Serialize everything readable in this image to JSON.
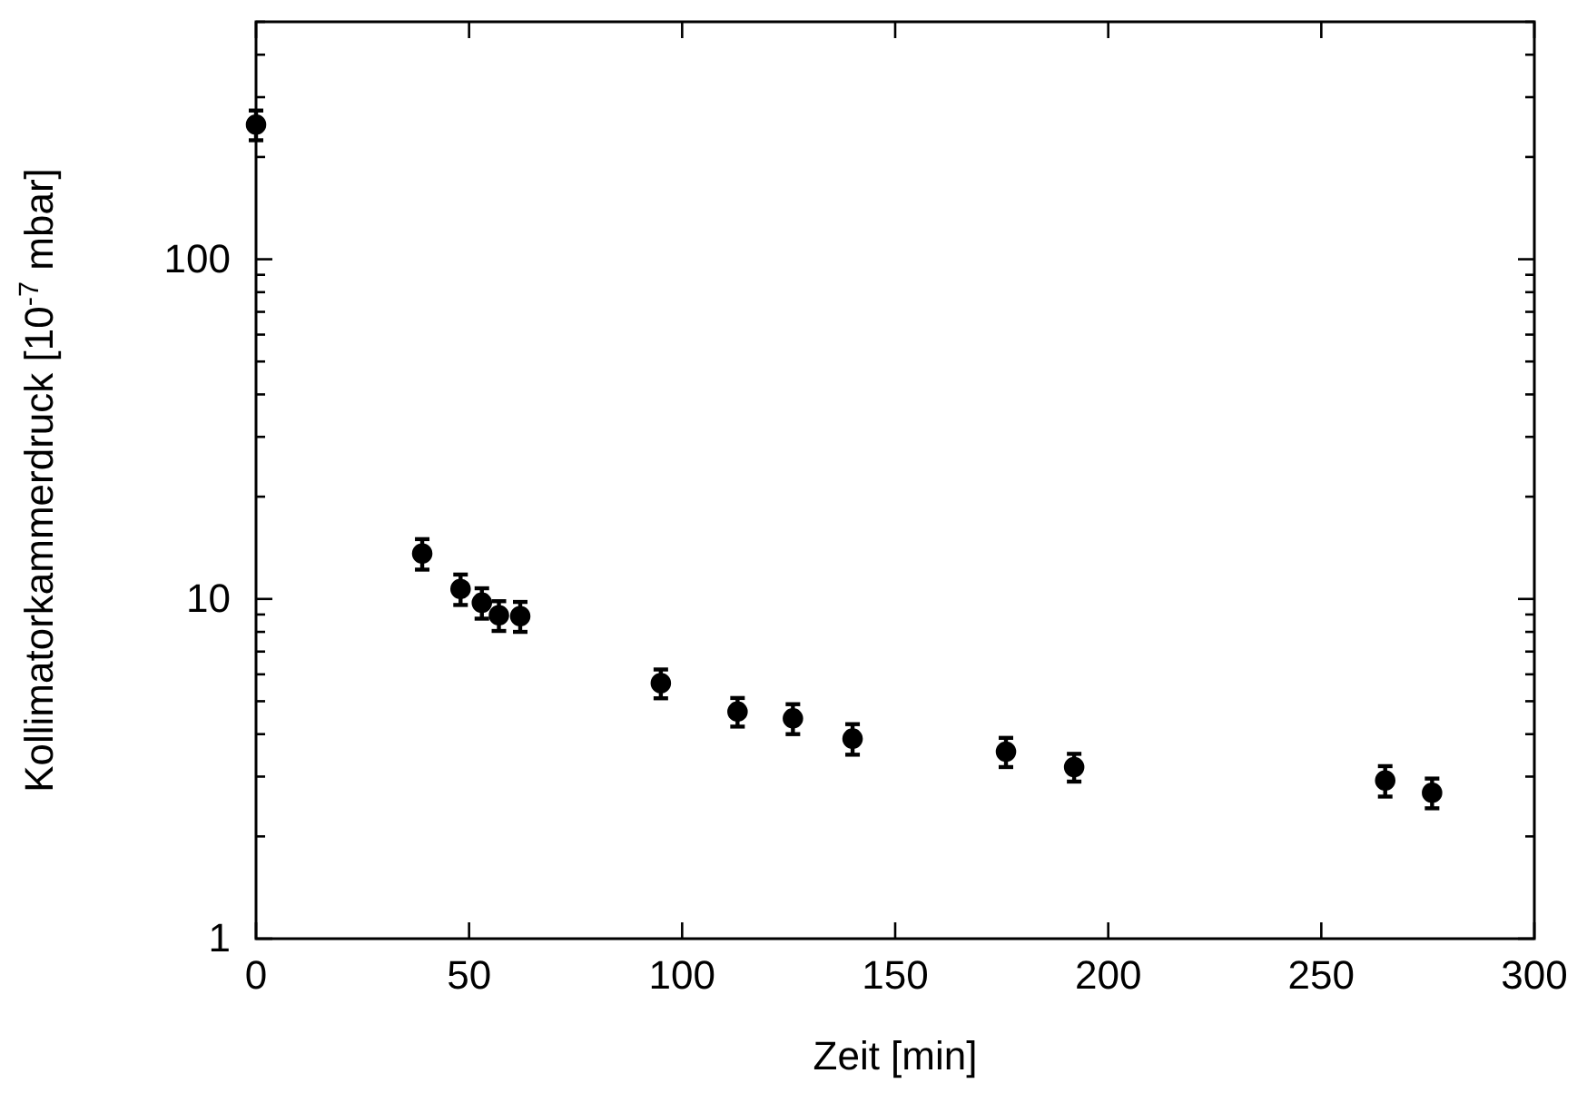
{
  "chart_data": {
    "type": "scatter",
    "xlabel": "Zeit [min]",
    "ylabel": "Kollimatorkammerdruck [10$^{-7}$ mbar]",
    "x": [
      0,
      39,
      48,
      53,
      57,
      62,
      95,
      113,
      126,
      140,
      176,
      192,
      265,
      276
    ],
    "series": [
      {
        "color": "#000000",
        "values": [
          249,
          13.6,
          10.7,
          9.75,
          8.95,
          8.9,
          5.65,
          4.66,
          4.45,
          3.88,
          3.55,
          3.2,
          2.92,
          2.69
        ],
        "errors": [
          25,
          1.4,
          1.1,
          1,
          0.9,
          0.9,
          0.55,
          0.45,
          0.45,
          0.4,
          0.35,
          0.3,
          0.3,
          0.27
        ]
      }
    ],
    "log": "y",
    "marker": "circle",
    "xlim": [
      0,
      300
    ],
    "xticks": [
      0,
      50,
      100,
      150,
      200,
      250,
      300
    ],
    "ylim": [
      1,
      500
    ],
    "yticks": [
      1,
      {
        "value": 2,
        "label": null
      },
      {
        "value": 3,
        "label": null
      },
      {
        "value": 4,
        "label": null
      },
      {
        "value": 5,
        "label": null
      },
      {
        "value": 6,
        "label": null
      },
      {
        "value": 7,
        "label": null
      },
      {
        "value": 8,
        "label": null
      },
      {
        "value": 9,
        "label": null
      },
      10,
      {
        "value": 20,
        "label": null
      },
      {
        "value": 30,
        "label": null
      },
      {
        "value": 40,
        "label": null
      },
      {
        "value": 50,
        "label": null
      },
      {
        "value": 60,
        "label": null
      },
      {
        "value": 70,
        "label": null
      },
      {
        "value": 80,
        "label": null
      },
      {
        "value": 90,
        "label": null
      },
      100,
      {
        "value": 200,
        "label": null
      },
      {
        "value": 300,
        "label": null
      },
      {
        "value": 400,
        "label": null
      },
      {
        "value": 500,
        "label": null
      }
    ]
  }
}
